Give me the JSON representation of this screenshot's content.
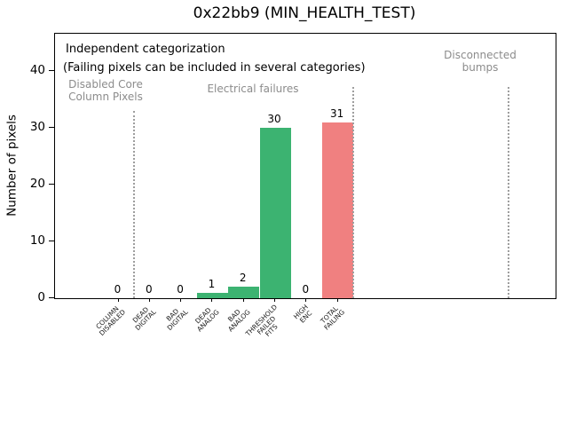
{
  "window": {
    "title": "0x22bb9 (MIN_HEALTH_TEST)"
  },
  "annotations": {
    "heading_line1": "Independent categorization",
    "heading_line2": "(Failing pixels can be included in several categories)",
    "section_disabled_core": "Disabled Core\nColumn Pixels",
    "section_electrical": "Electrical failures",
    "section_disconnected": "Disconnected\nbumps"
  },
  "colors": {
    "bar_green": "#3cb371",
    "bar_red": "#f08080",
    "section_text_gray": "#8c8c8c",
    "separator_gray": "#9e9e9e"
  },
  "chart_data": {
    "type": "bar",
    "title": "0x22bb9 (MIN_HEALTH_TEST)",
    "xlabel": "",
    "ylabel": "Number of pixels",
    "ylim": [
      0,
      46.8
    ],
    "yticks": [
      0,
      10,
      20,
      30,
      40
    ],
    "grid": false,
    "legend": "none",
    "categories": [
      "COLUMN\nDISABLED",
      "DEAD\nDIGITAL",
      "BAD\nDIGITAL",
      "DEAD\nANALOG",
      "BAD\nANALOG",
      "THRESHOLD\nFAILED\nFITS",
      "HIGH\nENC",
      "TOTAL\nFAILING"
    ],
    "values": [
      0,
      0,
      0,
      1,
      2,
      30,
      0,
      31
    ],
    "value_labels": [
      "0",
      "0",
      "0",
      "1",
      "2",
      "30",
      "0",
      "31"
    ],
    "bar_colors": [
      "#3cb371",
      "#3cb371",
      "#3cb371",
      "#3cb371",
      "#3cb371",
      "#3cb371",
      "#3cb371",
      "#f08080"
    ],
    "sections": [
      {
        "label": "Disabled Core\nColumn Pixels",
        "categories": [
          "COLUMN DISABLED"
        ]
      },
      {
        "label": "Electrical failures",
        "categories": [
          "DEAD DIGITAL",
          "BAD DIGITAL",
          "DEAD ANALOG",
          "BAD ANALOG",
          "THRESHOLD FAILED FITS",
          "HIGH ENC",
          "TOTAL FAILING"
        ]
      },
      {
        "label": "Disconnected bumps",
        "categories": []
      }
    ]
  }
}
